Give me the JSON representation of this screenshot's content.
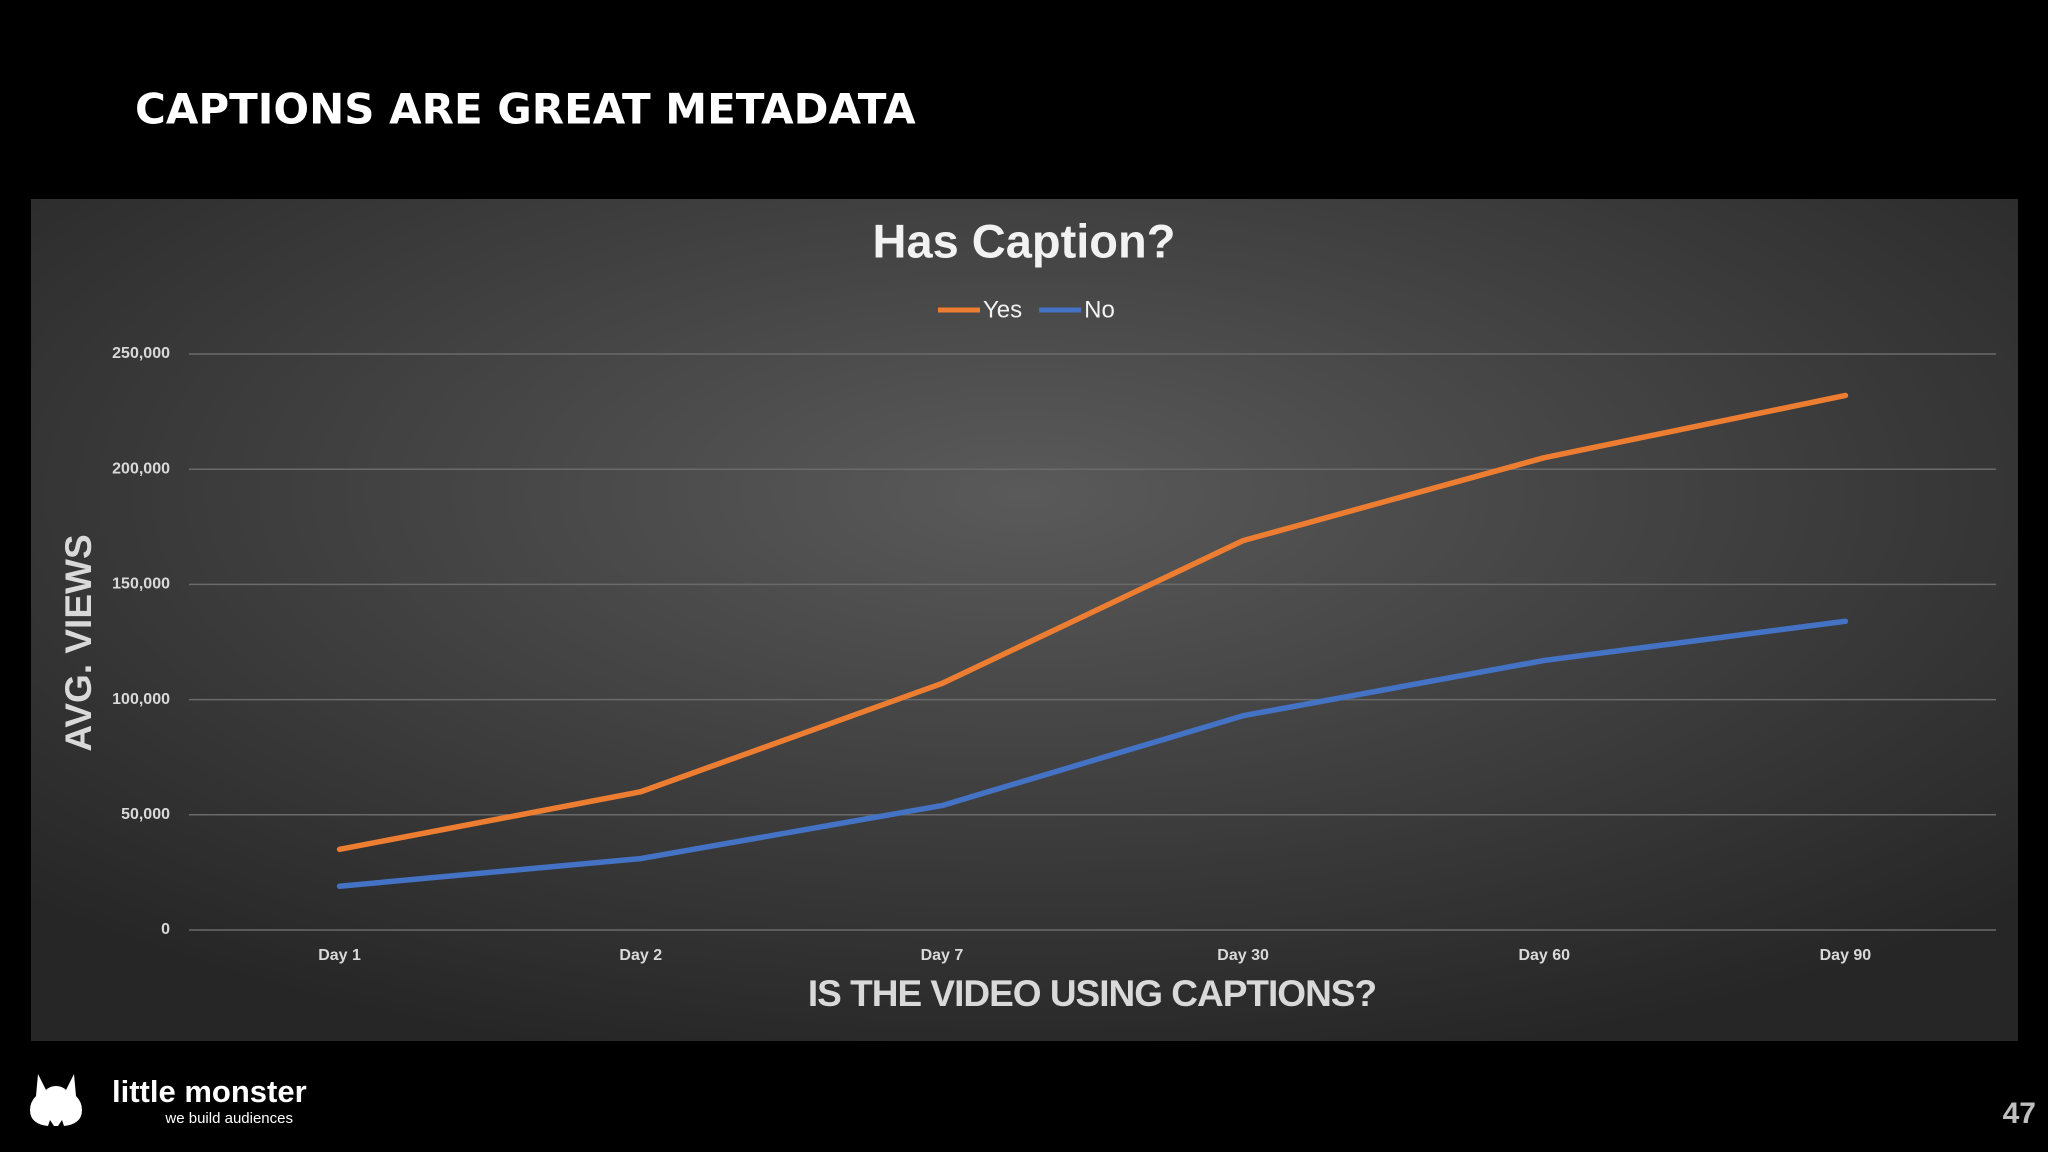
{
  "slide": {
    "title": "CAPTIONS ARE GREAT METADATA",
    "page_number": 47
  },
  "footer": {
    "brand": "little monster",
    "tagline": "we build audiences"
  },
  "chart_data": {
    "type": "line",
    "title": "Has Caption?",
    "x_label": "IS THE VIDEO USING CAPTIONS?",
    "y_label": "AVG. VIEWS",
    "categories": [
      "Day 1",
      "Day 2",
      "Day 7",
      "Day 30",
      "Day 60",
      "Day 90"
    ],
    "series": [
      {
        "name": "Yes",
        "color": "#ed7d31",
        "values": [
          35000,
          60000,
          107000,
          169000,
          205000,
          232000
        ]
      },
      {
        "name": "No",
        "color": "#4472c4",
        "values": [
          19000,
          31000,
          54000,
          93000,
          117000,
          134000
        ]
      }
    ],
    "ylim": [
      0,
      250000
    ],
    "yticks": [
      0,
      {
        "value": 50000,
        "label": "50,000"
      },
      {
        "value": 100000,
        "label": "100,000"
      },
      {
        "value": 150000,
        "label": "150,000"
      },
      {
        "value": 200000,
        "label": "200,000"
      },
      {
        "value": 250000,
        "label": "250,000"
      }
    ],
    "grid": true,
    "legend": "top"
  }
}
